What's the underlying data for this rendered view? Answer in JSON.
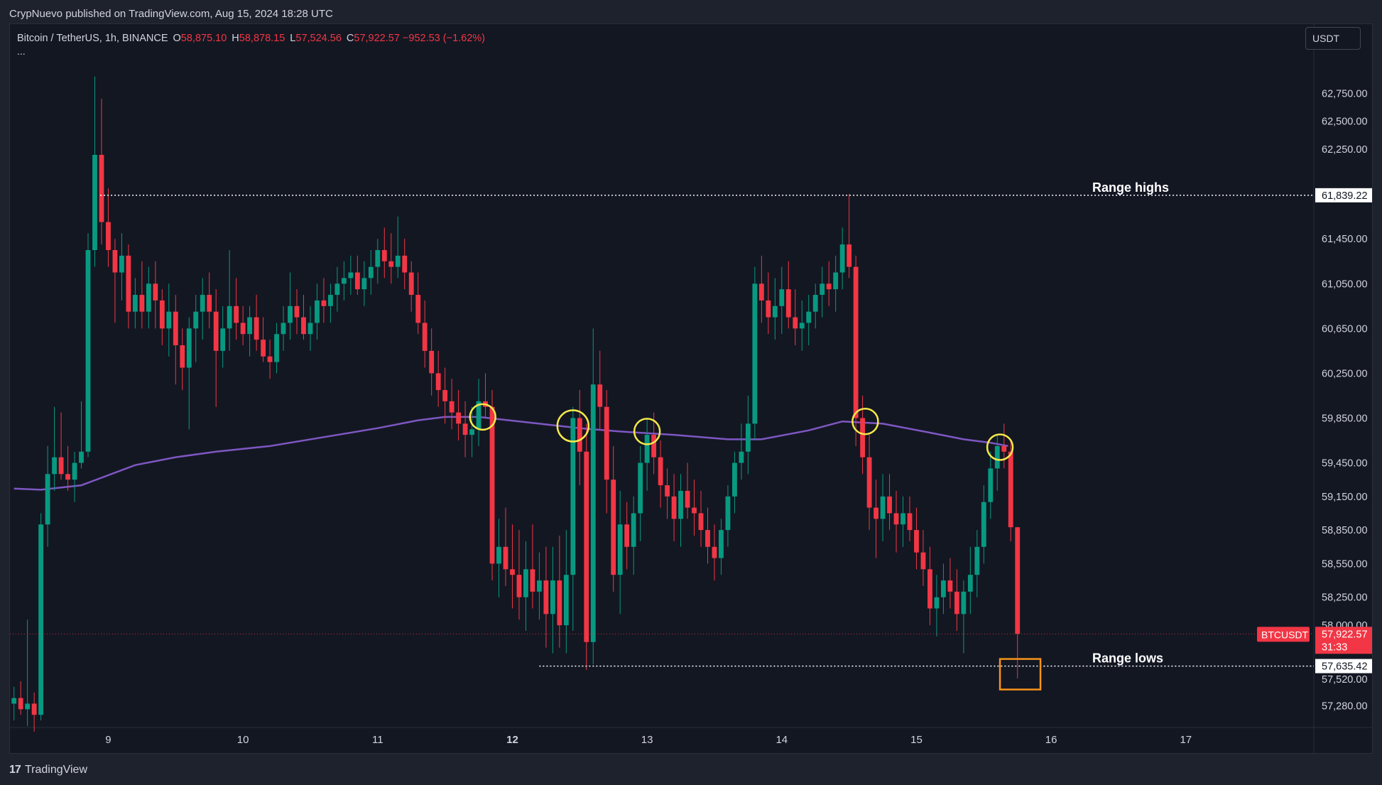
{
  "header": {
    "published": "CrypNuevo published on TradingView.com, Aug 15, 2024 18:28 UTC"
  },
  "legend": {
    "symbol": "Bitcoin / TetherUS, 1h, BINANCE",
    "o_label": "O",
    "o": "58,875.10",
    "h_label": "H",
    "h": "58,878.15",
    "l_label": "L",
    "l": "57,524.56",
    "c_label": "C",
    "c": "57,922.57",
    "change": "−952.53 (−1.62%)",
    "more": "..."
  },
  "toolbar": {
    "currency": "USDT"
  },
  "footer": {
    "logo_glyph": "17",
    "brand": "TradingView"
  },
  "colors": {
    "background": "#131722",
    "up": "#089981",
    "down": "#f23645",
    "ma": "#7e57c2",
    "circle": "#f5e94a",
    "box": "#f7931a",
    "text": "#d1d4dc"
  },
  "chart_data": {
    "type": "candlestick",
    "y_ticks": [
      "62,750.00",
      "62,500.00",
      "62,250.00",
      "61,450.00",
      "61,050.00",
      "60,650.00",
      "60,250.00",
      "59,850.00",
      "59,450.00",
      "59,150.00",
      "58,850.00",
      "58,550.00",
      "58,250.00",
      "58,000.00",
      "57,520.00",
      "57,280.00"
    ],
    "x_ticks": [
      "9",
      "10",
      "11",
      "12",
      "13",
      "14",
      "15",
      "16",
      "17"
    ],
    "bold_x_ticks": [
      "12"
    ],
    "annotations": {
      "range_high": {
        "label": "Range highs",
        "value": 61839.22,
        "value_label": "61,839.22"
      },
      "range_low": {
        "label": "Range lows",
        "value": 57635.42,
        "value_label": "57,635.42"
      }
    },
    "last_price": {
      "symbol": "BTCUSDT",
      "value": 57922.57,
      "value_label": "57,922.57",
      "countdown": "31:33"
    },
    "moving_average": [
      [
        8.3,
        59220
      ],
      [
        8.5,
        59210
      ],
      [
        8.8,
        59250
      ],
      [
        9.2,
        59430
      ],
      [
        9.5,
        59500
      ],
      [
        9.8,
        59550
      ],
      [
        10.2,
        59600
      ],
      [
        10.6,
        59680
      ],
      [
        11.0,
        59760
      ],
      [
        11.3,
        59830
      ],
      [
        11.5,
        59860
      ],
      [
        11.75,
        59860
      ],
      [
        12.2,
        59800
      ],
      [
        12.5,
        59760
      ],
      [
        12.8,
        59730
      ],
      [
        13.2,
        59700
      ],
      [
        13.6,
        59660
      ],
      [
        13.85,
        59660
      ],
      [
        14.2,
        59740
      ],
      [
        14.45,
        59820
      ],
      [
        14.75,
        59800
      ],
      [
        15.1,
        59720
      ],
      [
        15.35,
        59660
      ],
      [
        15.55,
        59630
      ],
      [
        15.68,
        59600
      ]
    ],
    "touch_points": [
      [
        11.78,
        59860
      ],
      [
        12.45,
        59780
      ],
      [
        13.0,
        59730
      ],
      [
        14.62,
        59820
      ],
      [
        15.62,
        59590
      ]
    ],
    "candles": [
      [
        8.3,
        57300,
        57450,
        57150,
        57350
      ],
      [
        8.35,
        57350,
        57500,
        57200,
        57250
      ],
      [
        8.4,
        57250,
        58050,
        57100,
        57300
      ],
      [
        8.45,
        57300,
        57400,
        57050,
        57200
      ],
      [
        8.5,
        57200,
        59000,
        57150,
        58900
      ],
      [
        8.55,
        58900,
        59600,
        58700,
        59350
      ],
      [
        8.6,
        59350,
        59950,
        59200,
        59500
      ],
      [
        8.65,
        59500,
        59900,
        59300,
        59350
      ],
      [
        8.7,
        59350,
        59600,
        59200,
        59300
      ],
      [
        8.75,
        59300,
        59550,
        59100,
        59450
      ],
      [
        8.8,
        59450,
        60000,
        59400,
        59550
      ],
      [
        8.85,
        59550,
        61500,
        59500,
        61350
      ],
      [
        8.9,
        61350,
        62900,
        61200,
        62200
      ],
      [
        8.95,
        62200,
        62700,
        61400,
        61600
      ],
      [
        9.0,
        61600,
        61900,
        61200,
        61350
      ],
      [
        9.05,
        61350,
        61450,
        60700,
        61150
      ],
      [
        9.1,
        61150,
        61500,
        60900,
        61300
      ],
      [
        9.15,
        61300,
        61400,
        60650,
        60800
      ],
      [
        9.2,
        60800,
        61100,
        60650,
        60950
      ],
      [
        9.25,
        60950,
        61250,
        60650,
        60800
      ],
      [
        9.3,
        60800,
        61200,
        60650,
        61050
      ],
      [
        9.35,
        61050,
        61250,
        60650,
        60900
      ],
      [
        9.4,
        60900,
        61000,
        60500,
        60650
      ],
      [
        9.45,
        60650,
        61050,
        60400,
        60800
      ],
      [
        9.5,
        60800,
        60950,
        60150,
        60500
      ],
      [
        9.55,
        60500,
        60650,
        60100,
        60300
      ],
      [
        9.6,
        60300,
        60750,
        59750,
        60650
      ],
      [
        9.65,
        60650,
        60950,
        60350,
        60800
      ],
      [
        9.7,
        60800,
        61100,
        60550,
        60950
      ],
      [
        9.75,
        60950,
        61150,
        60650,
        60800
      ],
      [
        9.8,
        60800,
        61000,
        59950,
        60450
      ],
      [
        9.85,
        60450,
        60850,
        60300,
        60650
      ],
      [
        9.9,
        60650,
        61350,
        60450,
        60850
      ],
      [
        9.95,
        60850,
        61100,
        60550,
        60700
      ],
      [
        10.0,
        60700,
        60850,
        60500,
        60600
      ],
      [
        10.05,
        60600,
        60850,
        60400,
        60750
      ],
      [
        10.1,
        60750,
        60950,
        60450,
        60550
      ],
      [
        10.15,
        60550,
        60750,
        60350,
        60400
      ],
      [
        10.2,
        60400,
        60550,
        60200,
        60350
      ],
      [
        10.25,
        60350,
        60700,
        60250,
        60600
      ],
      [
        10.3,
        60600,
        60850,
        60450,
        60700
      ],
      [
        10.35,
        60700,
        61150,
        60550,
        60850
      ],
      [
        10.4,
        60850,
        61000,
        60600,
        60750
      ],
      [
        10.45,
        60750,
        60950,
        60550,
        60600
      ],
      [
        10.5,
        60600,
        60850,
        60450,
        60700
      ],
      [
        10.55,
        60700,
        61050,
        60550,
        60900
      ],
      [
        10.6,
        60900,
        61100,
        60700,
        60850
      ],
      [
        10.65,
        60850,
        61050,
        60700,
        60950
      ],
      [
        10.7,
        60950,
        61200,
        60800,
        61050
      ],
      [
        10.75,
        61050,
        61250,
        60900,
        61100
      ],
      [
        10.8,
        61100,
        61300,
        60950,
        61150
      ],
      [
        10.85,
        61150,
        61300,
        60950,
        61000
      ],
      [
        10.9,
        61000,
        61250,
        60850,
        61100
      ],
      [
        10.95,
        61100,
        61350,
        60950,
        61200
      ],
      [
        11.0,
        61200,
        61450,
        61050,
        61350
      ],
      [
        11.05,
        61350,
        61550,
        61100,
        61250
      ],
      [
        11.1,
        61250,
        61500,
        61050,
        61200
      ],
      [
        11.15,
        61200,
        61650,
        61100,
        61300
      ],
      [
        11.2,
        61300,
        61450,
        61000,
        61150
      ],
      [
        11.25,
        61150,
        61250,
        60800,
        60950
      ],
      [
        11.3,
        60950,
        61150,
        60600,
        60700
      ],
      [
        11.35,
        60700,
        60900,
        60300,
        60450
      ],
      [
        11.4,
        60450,
        60650,
        60050,
        60250
      ],
      [
        11.45,
        60250,
        60450,
        59950,
        60100
      ],
      [
        11.5,
        60100,
        60300,
        59800,
        60000
      ],
      [
        11.55,
        60000,
        60200,
        59750,
        59900
      ],
      [
        11.6,
        59900,
        60100,
        59650,
        59800
      ],
      [
        11.65,
        59800,
        60000,
        59500,
        59700
      ],
      [
        11.7,
        59700,
        59950,
        59500,
        59750
      ],
      [
        11.75,
        59750,
        60200,
        59600,
        60000
      ],
      [
        11.8,
        60000,
        60250,
        59850,
        59950
      ],
      [
        11.85,
        59950,
        60100,
        58400,
        58550
      ],
      [
        11.9,
        58550,
        58950,
        58250,
        58700
      ],
      [
        11.95,
        58700,
        59050,
        58350,
        58500
      ],
      [
        12.0,
        58500,
        58900,
        58150,
        58450
      ],
      [
        12.05,
        58450,
        58850,
        58050,
        58250
      ],
      [
        12.1,
        58250,
        58750,
        57950,
        58500
      ],
      [
        12.15,
        58500,
        58900,
        58150,
        58300
      ],
      [
        12.2,
        58300,
        58650,
        58050,
        58400
      ],
      [
        12.25,
        58400,
        58700,
        57800,
        58100
      ],
      [
        12.3,
        58100,
        58700,
        57750,
        58400
      ],
      [
        12.35,
        58400,
        58800,
        57800,
        58000
      ],
      [
        12.4,
        58000,
        58850,
        57750,
        58450
      ],
      [
        12.45,
        58450,
        59950,
        57950,
        59850
      ],
      [
        12.5,
        59850,
        60100,
        59250,
        59550
      ],
      [
        12.55,
        59550,
        59800,
        57600,
        57850
      ],
      [
        12.6,
        57850,
        60650,
        57650,
        60150
      ],
      [
        12.65,
        60150,
        60450,
        59750,
        59950
      ],
      [
        12.7,
        59950,
        60100,
        59000,
        59300
      ],
      [
        12.75,
        59300,
        59600,
        58300,
        58450
      ],
      [
        12.8,
        58450,
        59200,
        58100,
        58900
      ],
      [
        12.85,
        58900,
        59100,
        58500,
        58700
      ],
      [
        12.9,
        58700,
        59150,
        58450,
        59000
      ],
      [
        12.95,
        59000,
        59600,
        58750,
        59450
      ],
      [
        13.0,
        59450,
        59850,
        59200,
        59700
      ],
      [
        13.05,
        59700,
        59900,
        59350,
        59500
      ],
      [
        13.1,
        59500,
        59650,
        59050,
        59250
      ],
      [
        13.15,
        59250,
        59400,
        58950,
        59150
      ],
      [
        13.2,
        59150,
        59350,
        58750,
        58950
      ],
      [
        13.25,
        58950,
        59350,
        58700,
        59200
      ],
      [
        13.3,
        59200,
        59450,
        58950,
        59050
      ],
      [
        13.35,
        59050,
        59300,
        58800,
        59000
      ],
      [
        13.4,
        59000,
        59200,
        58700,
        58850
      ],
      [
        13.45,
        58850,
        59050,
        58550,
        58700
      ],
      [
        13.5,
        58700,
        58900,
        58400,
        58600
      ],
      [
        13.55,
        58600,
        58950,
        58450,
        58850
      ],
      [
        13.6,
        58850,
        59250,
        58700,
        59150
      ],
      [
        13.65,
        59150,
        59550,
        59000,
        59450
      ],
      [
        13.7,
        59450,
        59800,
        59300,
        59550
      ],
      [
        13.75,
        59550,
        60050,
        59350,
        59800
      ],
      [
        13.8,
        59800,
        61200,
        59650,
        61050
      ],
      [
        13.85,
        61050,
        61300,
        60700,
        60900
      ],
      [
        13.9,
        60900,
        61150,
        60600,
        60750
      ],
      [
        13.95,
        60750,
        61100,
        60550,
        60850
      ],
      [
        14.0,
        60850,
        61200,
        60600,
        61000
      ],
      [
        14.05,
        61000,
        61250,
        60650,
        60750
      ],
      [
        14.1,
        60750,
        61000,
        60500,
        60650
      ],
      [
        14.15,
        60650,
        60900,
        60450,
        60700
      ],
      [
        14.2,
        60700,
        60950,
        60500,
        60800
      ],
      [
        14.25,
        60800,
        61050,
        60650,
        60950
      ],
      [
        14.3,
        60950,
        61200,
        60750,
        61050
      ],
      [
        14.35,
        61050,
        61250,
        60850,
        61000
      ],
      [
        14.4,
        61000,
        61300,
        60800,
        61150
      ],
      [
        14.45,
        61150,
        61550,
        61000,
        61400
      ],
      [
        14.5,
        61400,
        61850,
        61100,
        61200
      ],
      [
        14.55,
        61200,
        61300,
        59600,
        59850
      ],
      [
        14.6,
        59850,
        60050,
        59350,
        59500
      ],
      [
        14.65,
        59500,
        59700,
        58850,
        59050
      ],
      [
        14.7,
        59050,
        59300,
        58600,
        58950
      ],
      [
        14.75,
        58950,
        59350,
        58750,
        59150
      ],
      [
        14.8,
        59150,
        59350,
        58850,
        59000
      ],
      [
        14.85,
        59000,
        59200,
        58650,
        58900
      ],
      [
        14.9,
        58900,
        59150,
        58700,
        59000
      ],
      [
        14.95,
        59000,
        59150,
        58750,
        58850
      ],
      [
        15.0,
        58850,
        59050,
        58500,
        58650
      ],
      [
        15.05,
        58650,
        58850,
        58350,
        58500
      ],
      [
        15.1,
        58500,
        58700,
        58000,
        58150
      ],
      [
        15.15,
        58150,
        58450,
        57900,
        58250
      ],
      [
        15.2,
        58250,
        58550,
        58100,
        58400
      ],
      [
        15.25,
        58400,
        58600,
        58150,
        58300
      ],
      [
        15.3,
        58300,
        58500,
        57950,
        58100
      ],
      [
        15.35,
        58100,
        58400,
        57750,
        58300
      ],
      [
        15.4,
        58300,
        58700,
        58100,
        58450
      ],
      [
        15.45,
        58450,
        58850,
        58250,
        58700
      ],
      [
        15.5,
        58700,
        59250,
        58550,
        59100
      ],
      [
        15.55,
        59100,
        59550,
        58950,
        59400
      ],
      [
        15.6,
        59400,
        59700,
        59200,
        59600
      ],
      [
        15.65,
        59600,
        59800,
        59400,
        59550
      ],
      [
        15.7,
        59550,
        59650,
        58750,
        58875
      ],
      [
        15.75,
        58875,
        58878,
        57525,
        57923
      ]
    ],
    "x_domain": [
      8.27,
      17.95
    ],
    "y_domain": [
      57100,
      63050
    ]
  }
}
